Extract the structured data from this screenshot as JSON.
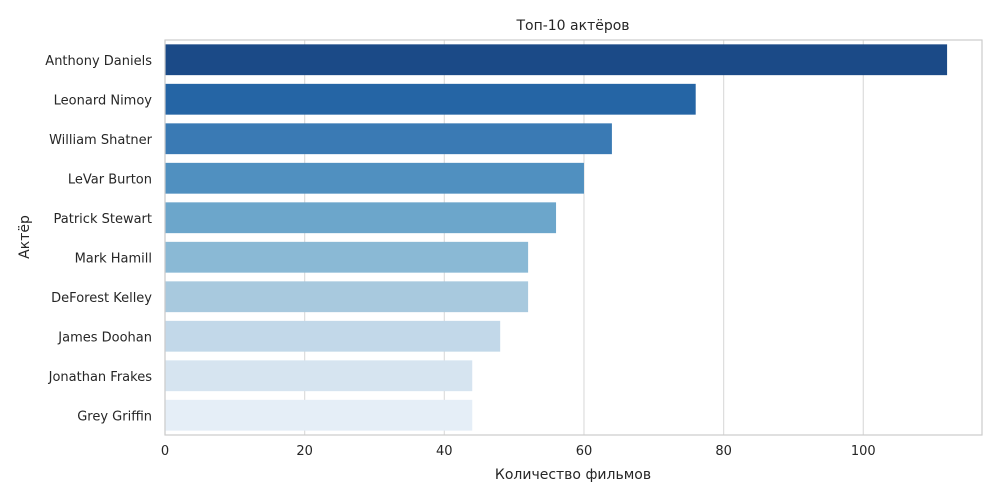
{
  "chart_data": {
    "type": "bar",
    "orientation": "horizontal",
    "title": "Топ-10 актёров",
    "xlabel": "Количество фильмов",
    "ylabel": "Актёр",
    "categories": [
      "Anthony Daniels",
      "Leonard Nimoy",
      "William Shatner",
      "LeVar Burton",
      "Patrick Stewart",
      "Mark Hamill",
      "DeForest Kelley",
      "James Doohan",
      "Jonathan Frakes",
      "Grey Griffin"
    ],
    "values": [
      112,
      76,
      64,
      60,
      56,
      52,
      52,
      48,
      44,
      44
    ],
    "xlim": [
      0,
      117
    ],
    "xticks": [
      0,
      20,
      40,
      60,
      80,
      100
    ],
    "grid": "vertical",
    "colors": [
      "#1b4a87",
      "#2565a5",
      "#3a7ab4",
      "#5090c0",
      "#6ca6cb",
      "#8ab9d5",
      "#a8c9de",
      "#c2d8e9",
      "#d6e4f0",
      "#e5eef7"
    ]
  }
}
